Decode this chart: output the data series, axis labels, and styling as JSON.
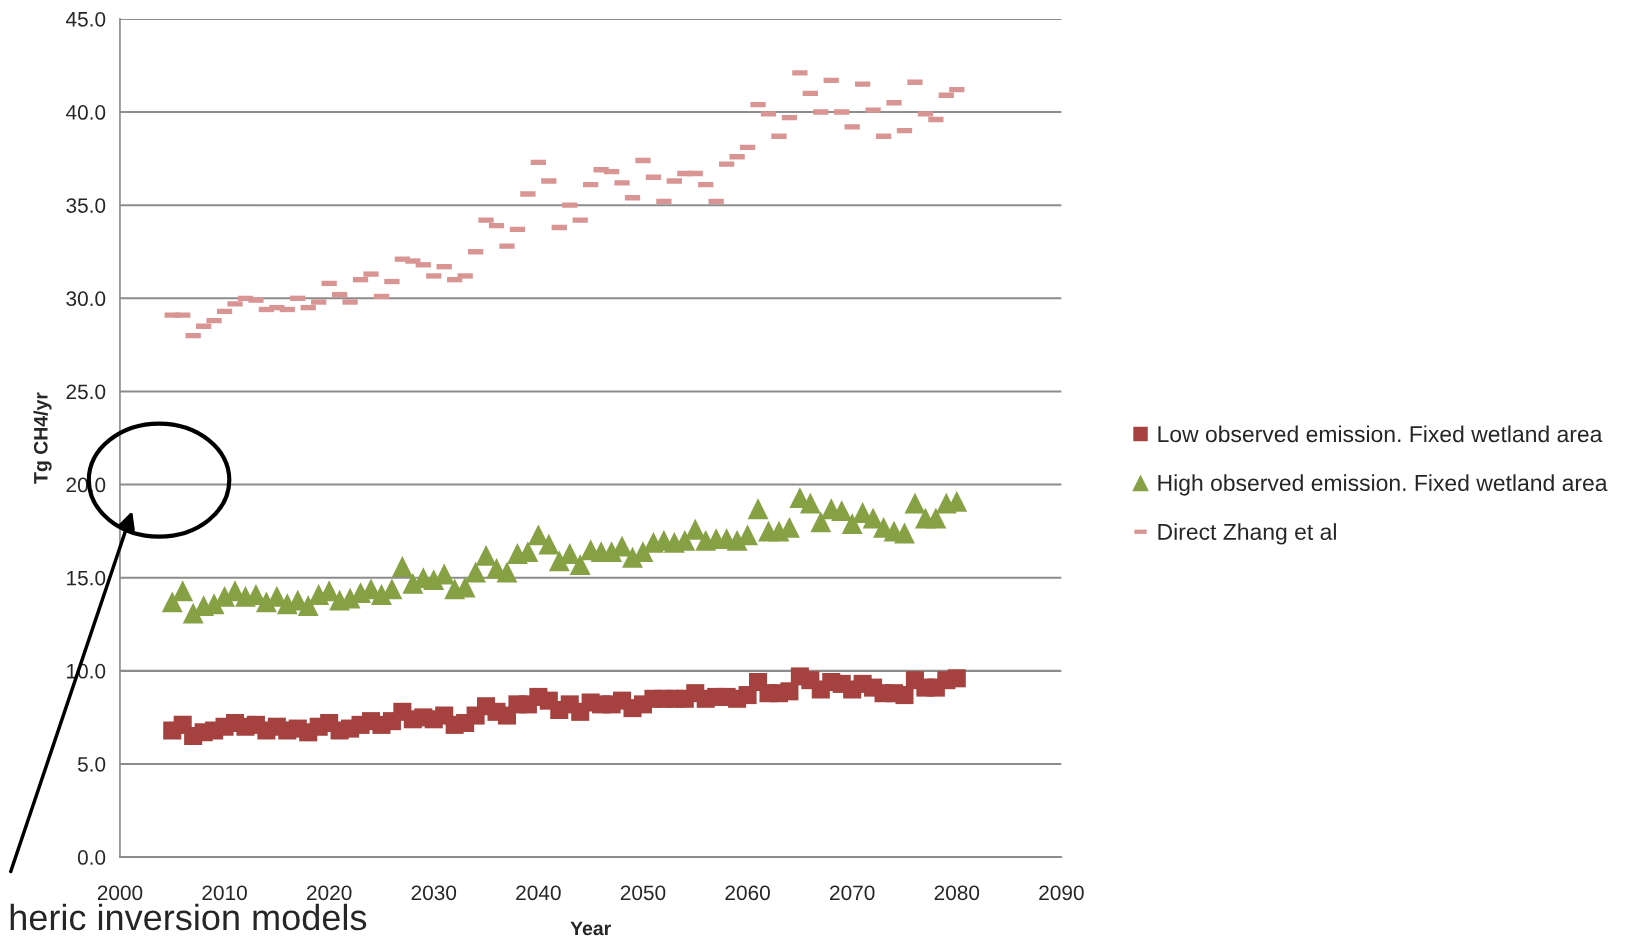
{
  "chart_data": {
    "type": "scatter",
    "xlabel": "Year",
    "ylabel": "Tg CH4/yr",
    "x": [
      2005,
      2006,
      2007,
      2008,
      2009,
      2010,
      2011,
      2012,
      2013,
      2014,
      2015,
      2016,
      2017,
      2018,
      2019,
      2020,
      2021,
      2022,
      2023,
      2024,
      2025,
      2026,
      2027,
      2028,
      2029,
      2030,
      2031,
      2032,
      2033,
      2034,
      2035,
      2036,
      2037,
      2038,
      2039,
      2040,
      2041,
      2042,
      2043,
      2044,
      2045,
      2046,
      2047,
      2048,
      2049,
      2050,
      2051,
      2052,
      2053,
      2054,
      2055,
      2056,
      2057,
      2058,
      2059,
      2060,
      2061,
      2062,
      2063,
      2064,
      2065,
      2066,
      2067,
      2068,
      2069,
      2070,
      2071,
      2072,
      2073,
      2074,
      2075,
      2076,
      2077,
      2078,
      2079,
      2080
    ],
    "series": [
      {
        "name": "Low observed emission. Fixed wetland area",
        "color": "#a5423f",
        "marker": "square",
        "values": [
          6.8,
          7.1,
          6.5,
          6.7,
          6.8,
          7.0,
          7.2,
          7.0,
          7.1,
          6.8,
          7.0,
          6.8,
          6.9,
          6.7,
          7.0,
          7.2,
          6.8,
          6.9,
          7.1,
          7.3,
          7.1,
          7.3,
          7.8,
          7.4,
          7.5,
          7.4,
          7.6,
          7.1,
          7.2,
          7.6,
          8.1,
          7.8,
          7.6,
          8.2,
          8.2,
          8.6,
          8.4,
          7.9,
          8.2,
          7.8,
          8.3,
          8.2,
          8.2,
          8.4,
          8.0,
          8.2,
          8.5,
          8.5,
          8.5,
          8.5,
          8.8,
          8.5,
          8.6,
          8.6,
          8.5,
          8.7,
          9.4,
          8.8,
          8.8,
          8.9,
          9.7,
          9.5,
          9.0,
          9.4,
          9.3,
          9.0,
          9.3,
          9.1,
          8.8,
          8.8,
          8.7,
          9.5,
          9.1,
          9.1,
          9.5,
          9.6
        ]
      },
      {
        "name": "High observed emission. Fixed wetland area",
        "color": "#86a144",
        "marker": "triangle",
        "values": [
          13.7,
          14.3,
          13.1,
          13.5,
          13.6,
          14.0,
          14.3,
          14.0,
          14.1,
          13.7,
          14.0,
          13.6,
          13.8,
          13.5,
          14.1,
          14.3,
          13.8,
          13.9,
          14.2,
          14.4,
          14.1,
          14.4,
          15.6,
          14.7,
          15.0,
          14.9,
          15.2,
          14.4,
          14.5,
          15.3,
          16.2,
          15.5,
          15.3,
          16.3,
          16.4,
          17.3,
          16.8,
          15.9,
          16.3,
          15.7,
          16.5,
          16.4,
          16.4,
          16.7,
          16.1,
          16.4,
          16.9,
          17.0,
          16.9,
          17.0,
          17.6,
          17.0,
          17.1,
          17.1,
          17.0,
          17.3,
          18.7,
          17.5,
          17.5,
          17.7,
          19.3,
          19.0,
          18.0,
          18.7,
          18.6,
          17.9,
          18.5,
          18.2,
          17.7,
          17.5,
          17.4,
          19.0,
          18.2,
          18.2,
          19.0,
          19.1
        ]
      },
      {
        "name": "Direct Zhang et al",
        "color": "#d99594",
        "values": [
          29.1,
          29.1,
          28.0,
          28.5,
          28.8,
          29.3,
          29.7,
          30.0,
          29.9,
          29.4,
          29.5,
          29.4,
          30.0,
          29.5,
          29.8,
          30.8,
          30.2,
          29.8,
          31.0,
          31.3,
          30.1,
          30.9,
          32.1,
          32.0,
          31.8,
          31.2,
          31.7,
          31.0,
          31.2,
          32.5,
          34.2,
          33.9,
          32.8,
          33.7,
          35.6,
          37.3,
          36.3,
          33.8,
          35.0,
          34.2,
          36.1,
          36.9,
          36.8,
          36.2,
          35.4,
          37.4,
          36.5,
          35.2,
          36.3,
          36.7,
          36.7,
          36.1,
          35.2,
          37.2,
          37.6,
          38.1,
          40.4,
          39.9,
          38.7,
          39.7,
          42.1,
          41.0,
          40.0,
          41.7,
          40.0,
          39.2,
          41.5,
          40.1,
          38.7,
          40.5,
          39.0,
          41.6,
          39.9,
          39.6,
          40.9,
          41.2
        ]
      }
    ],
    "xlim": [
      2000,
      2090
    ],
    "xticks": [
      2000,
      2010,
      2020,
      2030,
      2040,
      2050,
      2060,
      2070,
      2080,
      2090
    ],
    "ylim": [
      0,
      45
    ],
    "yticks": [
      {
        "value": 0,
        "label": "0.0"
      },
      {
        "value": 5,
        "label": "5.0"
      },
      {
        "value": 10,
        "label": "10.0"
      },
      {
        "value": 15,
        "label": "15.0"
      },
      {
        "value": 20,
        "label": "20.0"
      },
      {
        "value": 25,
        "label": "25.0"
      },
      {
        "value": 30,
        "label": "30.0"
      },
      {
        "value": 35,
        "label": "35.0"
      },
      {
        "value": 40,
        "label": "40.0"
      },
      {
        "value": 45,
        "label": "45.0"
      }
    ],
    "grid": "y",
    "legend": "right",
    "annotations": [
      "heric inversion models"
    ]
  }
}
